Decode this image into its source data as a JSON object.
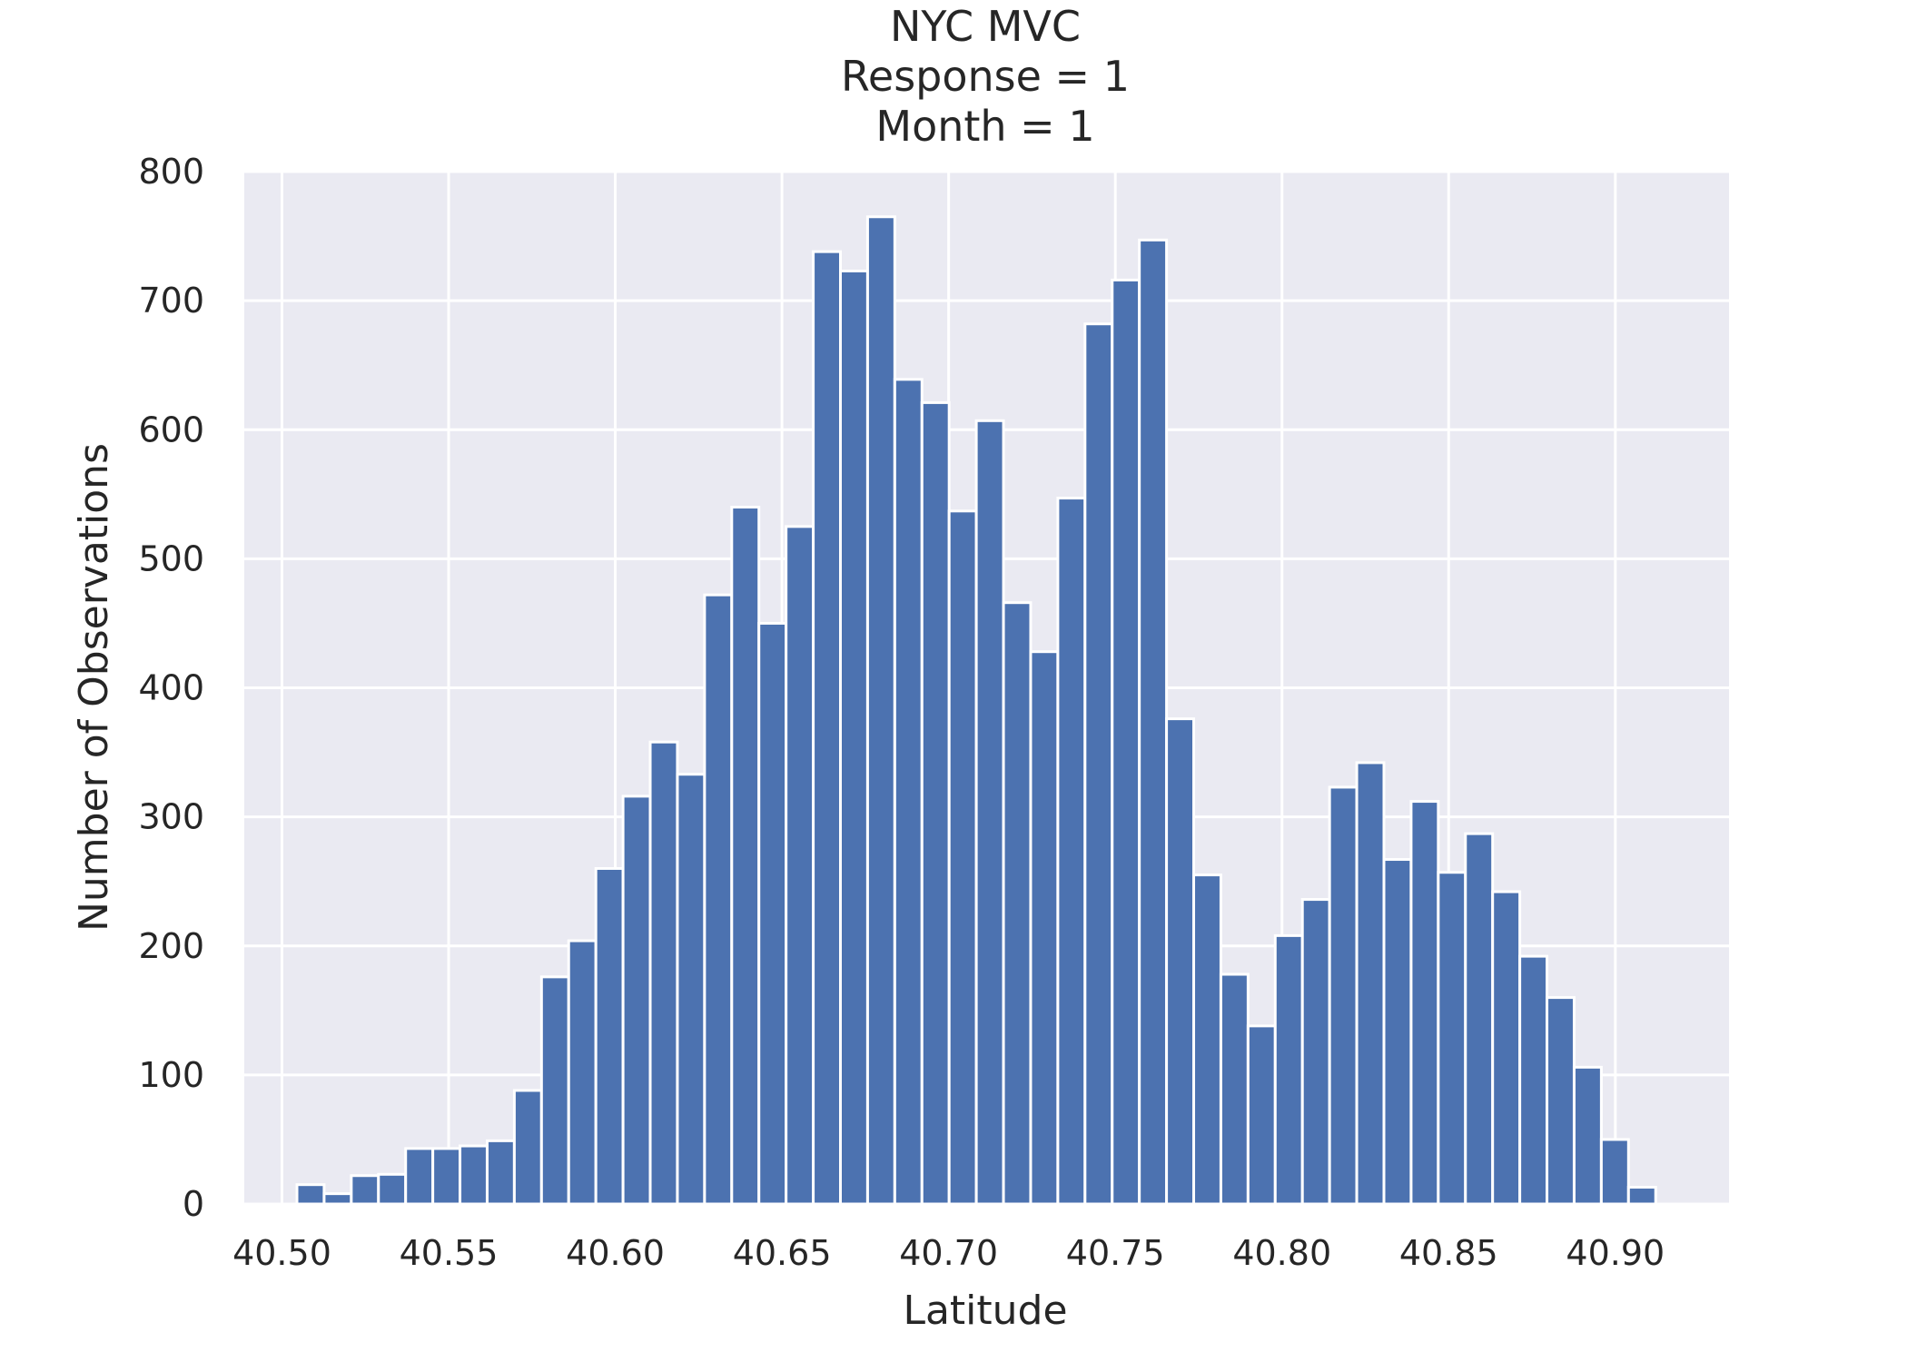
{
  "chart_data": {
    "type": "bar",
    "title_lines": [
      "NYC MVC",
      "Response = 1",
      "Month = 1"
    ],
    "xlabel": "Latitude",
    "ylabel": "Number of Observations",
    "xlim": [
      40.4887,
      40.9341
    ],
    "ylim": [
      0,
      800
    ],
    "x_ticks": [
      40.5,
      40.55,
      40.6,
      40.65,
      40.7,
      40.75,
      40.8,
      40.85,
      40.9
    ],
    "x_tick_labels": [
      "40.50",
      "40.55",
      "40.60",
      "40.65",
      "40.70",
      "40.75",
      "40.80",
      "40.85",
      "40.90"
    ],
    "y_ticks": [
      0,
      100,
      200,
      300,
      400,
      500,
      600,
      700,
      800
    ],
    "y_tick_labels": [
      "0",
      "100",
      "200",
      "300",
      "400",
      "500",
      "600",
      "700",
      "800"
    ],
    "grid": true,
    "bar_color": "#4c72b0",
    "plot_background": "#eaeaf2",
    "bins": {
      "start": 40.5045,
      "width": 0.008152,
      "counts": [
        15,
        8,
        22,
        23,
        43,
        43,
        45,
        49,
        88,
        176,
        204,
        260,
        316,
        358,
        333,
        472,
        540,
        450,
        525,
        738,
        723,
        765,
        639,
        621,
        537,
        607,
        466,
        428,
        547,
        682,
        716,
        747,
        376,
        255,
        178,
        138,
        208,
        236,
        323,
        342,
        267,
        312,
        257,
        287,
        242,
        192,
        160,
        106,
        50,
        13
      ]
    }
  }
}
